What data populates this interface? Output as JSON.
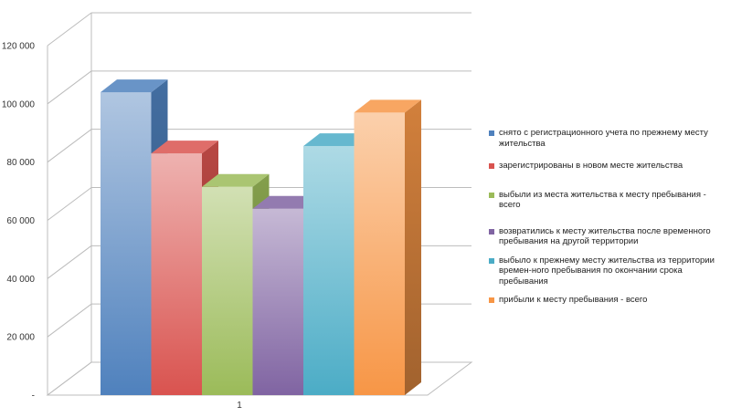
{
  "chart_data": {
    "type": "bar",
    "style": "3d-clustered-column",
    "categories": [
      "1"
    ],
    "ylim": [
      0,
      120000
    ],
    "yticks": [
      0,
      20000,
      40000,
      60000,
      80000,
      100000,
      120000
    ],
    "ytick_labels": [
      "-",
      "20 000",
      "40 000",
      "60 000",
      "80 000",
      "100 000",
      "120 000"
    ],
    "grid": true,
    "legend_position": "right",
    "series": [
      {
        "name": "снято с регистрационного учета по прежнему месту жительства",
        "values": [
          104000
        ],
        "color": "#4F81BD"
      },
      {
        "name": "зарегистрированы в новом месте жительства",
        "values": [
          83000
        ],
        "color": "#D9534F"
      },
      {
        "name": "выбыли из места жительства к месту пребывания - всего",
        "values": [
          71500
        ],
        "color": "#9BBB59"
      },
      {
        "name": "возвратились к месту жительства после временного пребывания на другой территории",
        "values": [
          64000
        ],
        "color": "#8064A2"
      },
      {
        "name": "выбыло к прежнему месту жительства из территории времен-ного пребывания по окончании срока пребывания",
        "values": [
          85500
        ],
        "color": "#4BACC6"
      },
      {
        "name": "прибыли к месту пребывания - всего",
        "values": [
          97000
        ],
        "color": "#F79646"
      }
    ]
  }
}
